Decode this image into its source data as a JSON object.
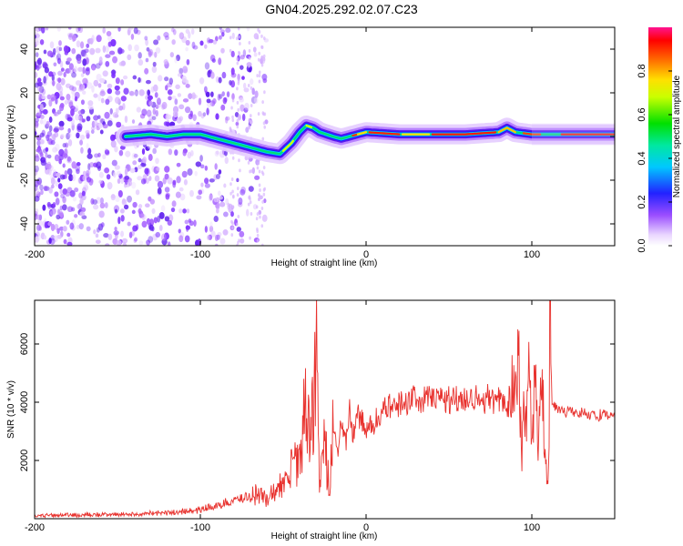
{
  "title": "GN04.2025.292.02.07.C23",
  "chart_data": [
    {
      "type": "heatmap",
      "name": "spectrogram",
      "xlabel": "Height of straight line (km)",
      "ylabel": "Frequency (Hz)",
      "xlim": [
        -200,
        150
      ],
      "ylim": [
        -50,
        50
      ],
      "xticks": [
        "-200",
        "-100",
        "0",
        "100"
      ],
      "xtick_values": [
        -200,
        -100,
        0,
        100
      ],
      "yticks": [
        "-40",
        "-20",
        "0",
        "20",
        "40"
      ],
      "ytick_values": [
        -40,
        -20,
        0,
        20,
        40
      ],
      "ridge": {
        "x": [
          -145,
          -130,
          -120,
          -110,
          -100,
          -90,
          -80,
          -70,
          -60,
          -52,
          -45,
          -40,
          -36,
          -32,
          -28,
          -24,
          -20,
          -15,
          -10,
          -5,
          0,
          20,
          40,
          60,
          80,
          85,
          90,
          100,
          110,
          130,
          150
        ],
        "y": [
          0,
          1,
          0,
          1,
          1,
          -1,
          -3,
          -5,
          -7,
          -8,
          -3,
          2,
          5,
          4,
          2,
          1,
          0,
          -1,
          0,
          1,
          2,
          1,
          1,
          1,
          2,
          4,
          2,
          1,
          1,
          1,
          1
        ]
      },
      "colorbar": {
        "label": "Normalized spectral amplitude",
        "ticks": [
          "0.0",
          "0.2",
          "0.4",
          "0.6",
          "0.8"
        ],
        "tick_values": [
          0.0,
          0.2,
          0.4,
          0.6,
          0.8
        ],
        "range": [
          0,
          1
        ]
      }
    },
    {
      "type": "line",
      "name": "snr",
      "xlabel": "Height of straight line (km)",
      "ylabel": "SNR (10 * v/v)",
      "xlim": [
        -200,
        150
      ],
      "ylim": [
        0,
        7500
      ],
      "xticks": [
        "-200",
        "-100",
        "0",
        "100"
      ],
      "xtick_values": [
        -200,
        -100,
        0,
        100
      ],
      "yticks": [
        "2000",
        "4000",
        "6000"
      ],
      "ytick_values": [
        2000,
        4000,
        6000
      ],
      "color": "#e8322e",
      "x": [
        -200,
        -180,
        -160,
        -140,
        -120,
        -100,
        -90,
        -80,
        -70,
        -65,
        -60,
        -55,
        -50,
        -45,
        -40,
        -36,
        -33,
        -30,
        -28,
        -25,
        -22,
        -20,
        -17,
        -15,
        -12,
        -10,
        -8,
        -5,
        -2,
        0,
        5,
        10,
        15,
        20,
        25,
        30,
        40,
        50,
        60,
        70,
        80,
        85,
        88,
        90,
        92,
        94,
        95,
        96,
        98,
        100,
        102,
        104,
        106,
        108,
        110,
        111,
        112,
        115,
        120,
        130,
        140,
        150
      ],
      "y": [
        100,
        120,
        130,
        160,
        200,
        300,
        450,
        600,
        800,
        900,
        600,
        1000,
        1100,
        1700,
        2200,
        4200,
        3000,
        5700,
        1000,
        2800,
        800,
        3200,
        2300,
        3300,
        2600,
        3800,
        2900,
        3500,
        3300,
        3000,
        3300,
        3700,
        3800,
        3950,
        4050,
        4100,
        4150,
        4100,
        4150,
        4150,
        4050,
        3800,
        4700,
        4000,
        5900,
        1800,
        5200,
        2600,
        5100,
        3000,
        4800,
        2800,
        5400,
        2200,
        900,
        7400,
        4000,
        3800,
        3700,
        3650,
        3550,
        3500
      ]
    }
  ]
}
